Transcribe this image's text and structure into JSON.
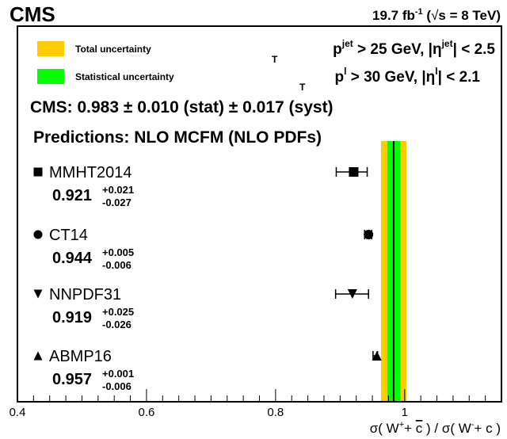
{
  "header": {
    "experiment": "CMS",
    "lumi_value": "19.7 fb",
    "lumi_exp": "-1",
    "energy_open": " (",
    "sqrt": "√",
    "energy": "s = 8 TeV)"
  },
  "legend": [
    {
      "label": "Total uncertainty",
      "color": "#ffcc00"
    },
    {
      "label": "Statistical uncertainty",
      "color": "#00ff00"
    }
  ],
  "cuts": {
    "jet": {
      "p": "p",
      "sup": "jet",
      "sub": "T",
      "rest": " > 25 GeV, |η",
      "eta_sup": "jet",
      "tail": "| < 2.5"
    },
    "lep": {
      "p": "p",
      "sup": "l",
      "sub": "T",
      "rest": " > 30 GeV, |η",
      "eta_sup": "l",
      "tail": "| < 2.1"
    }
  },
  "result_text": "CMS: 0.983 ± 0.010 (stat) ± 0.017 (syst)",
  "predictions_title": "Predictions: NLO MCFM (NLO PDFs)",
  "chart_data": {
    "type": "scatter",
    "xlim": [
      0.4,
      1.15
    ],
    "xticks": [
      0.4,
      0.6,
      0.8,
      1
    ],
    "xtick_labels": [
      "0.4",
      "0.6",
      "0.8",
      "1"
    ],
    "xlabel": {
      "sigma1": "σ( W",
      "sup1": "+",
      "plus1": "+ ",
      "cbar": "c",
      "mid": " ) / σ( W",
      "sup2": "-",
      "tail": "+ c )"
    },
    "measurement": {
      "value": 0.983,
      "stat": 0.01,
      "syst": 0.017,
      "total": 0.0197,
      "band_color_total": "#ffcc00",
      "band_color_stat": "#00ff00",
      "line_color": "#000000"
    },
    "series": [
      {
        "name": "MMHT2014",
        "marker": "square",
        "value": 0.921,
        "value_label": "0.921",
        "err_up": 0.021,
        "err_down": 0.027,
        "up_label": "+0.021",
        "down_label": "-0.027"
      },
      {
        "name": "CT14",
        "marker": "circle",
        "value": 0.944,
        "value_label": "0.944",
        "err_up": 0.005,
        "err_down": 0.006,
        "up_label": "+0.005",
        "down_label": "-0.006"
      },
      {
        "name": "NNPDF31",
        "marker": "triangle-down",
        "value": 0.919,
        "value_label": "0.919",
        "err_up": 0.025,
        "err_down": 0.026,
        "up_label": "+0.025",
        "down_label": "-0.026"
      },
      {
        "name": "ABMP16",
        "marker": "triangle-up",
        "value": 0.957,
        "value_label": "0.957",
        "err_up": 0.001,
        "err_down": 0.006,
        "up_label": "+0.001",
        "down_label": "-0.006"
      }
    ]
  }
}
